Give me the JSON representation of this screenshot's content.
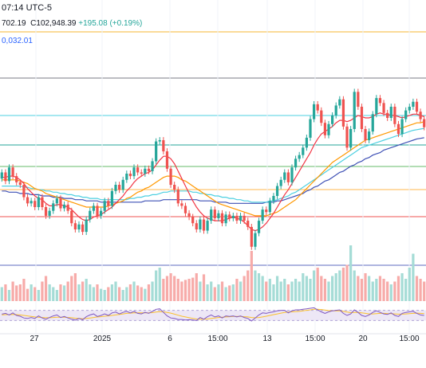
{
  "header": {
    "time_text": "07:14 UTC-5",
    "ohlc_prefix": "702.19",
    "close_label": "C",
    "close_value": "102,948.39",
    "change_text": "+195.08 (+0.19%)",
    "ma_text": "0,032.01"
  },
  "colors": {
    "up": "#26a69a",
    "down": "#ef5350",
    "ma_fast": "#f23645",
    "ma_mid": "#ff9800",
    "ma_slow": "#4dd0e1",
    "ma_long": "#3f51b5",
    "rsi_line": "#7e57c2",
    "rsi_ma": "#fbc02d",
    "rsi_band": "#ede7f6",
    "orange_level": "#f5b731"
  },
  "chart_data": {
    "type": "candlestick",
    "x_tick_labels": [
      "27",
      "2025",
      "6",
      "15:00",
      "13",
      "15:00",
      "20",
      "15:00"
    ],
    "price_range": [
      92000,
      110000
    ],
    "candles": [
      {
        "o": 98800,
        "c": 99300
      },
      {
        "o": 99300,
        "c": 98600
      },
      {
        "o": 98600,
        "c": 99700
      },
      {
        "o": 99700,
        "c": 99000
      },
      {
        "o": 99000,
        "c": 98500
      },
      {
        "o": 98500,
        "c": 98300
      },
      {
        "o": 98300,
        "c": 97300
      },
      {
        "o": 97300,
        "c": 96800
      },
      {
        "o": 96800,
        "c": 97000
      },
      {
        "o": 97000,
        "c": 96500
      },
      {
        "o": 96500,
        "c": 97300
      },
      {
        "o": 97300,
        "c": 96500
      },
      {
        "o": 96500,
        "c": 95800
      },
      {
        "o": 95800,
        "c": 96200
      },
      {
        "o": 96200,
        "c": 96800
      },
      {
        "o": 96800,
        "c": 97200
      },
      {
        "o": 97200,
        "c": 96400
      },
      {
        "o": 96400,
        "c": 96700
      },
      {
        "o": 96700,
        "c": 96200
      },
      {
        "o": 96200,
        "c": 95200
      },
      {
        "o": 95200,
        "c": 94700
      },
      {
        "o": 94700,
        "c": 95100
      },
      {
        "o": 95100,
        "c": 94500
      },
      {
        "o": 94500,
        "c": 95500
      },
      {
        "o": 95500,
        "c": 96200
      },
      {
        "o": 96200,
        "c": 96600
      },
      {
        "o": 96600,
        "c": 95800
      },
      {
        "o": 95800,
        "c": 96200
      },
      {
        "o": 96200,
        "c": 97000
      },
      {
        "o": 97000,
        "c": 96600
      },
      {
        "o": 96600,
        "c": 97800
      },
      {
        "o": 97800,
        "c": 98300
      },
      {
        "o": 98300,
        "c": 97900
      },
      {
        "o": 97900,
        "c": 98700
      },
      {
        "o": 98700,
        "c": 99200
      },
      {
        "o": 99200,
        "c": 99000
      },
      {
        "o": 99000,
        "c": 99700
      },
      {
        "o": 99700,
        "c": 99300
      },
      {
        "o": 99300,
        "c": 99200
      },
      {
        "o": 99200,
        "c": 99600
      },
      {
        "o": 99600,
        "c": 99400
      },
      {
        "o": 99400,
        "c": 100200
      },
      {
        "o": 100200,
        "c": 101800
      },
      {
        "o": 101800,
        "c": 101900
      },
      {
        "o": 101900,
        "c": 101000
      },
      {
        "o": 101000,
        "c": 99600
      },
      {
        "o": 99600,
        "c": 98300
      },
      {
        "o": 98300,
        "c": 97900
      },
      {
        "o": 97900,
        "c": 96800
      },
      {
        "o": 96800,
        "c": 96600
      },
      {
        "o": 96600,
        "c": 96000
      },
      {
        "o": 96000,
        "c": 95700
      },
      {
        "o": 95700,
        "c": 95200
      },
      {
        "o": 95200,
        "c": 94700
      },
      {
        "o": 94700,
        "c": 95500
      },
      {
        "o": 95500,
        "c": 94600
      },
      {
        "o": 94600,
        "c": 95400
      },
      {
        "o": 95400,
        "c": 96300
      },
      {
        "o": 96300,
        "c": 95600
      },
      {
        "o": 95600,
        "c": 96000
      },
      {
        "o": 96000,
        "c": 95200
      },
      {
        "o": 95200,
        "c": 95900
      },
      {
        "o": 95900,
        "c": 95600
      },
      {
        "o": 95600,
        "c": 95800
      },
      {
        "o": 95800,
        "c": 95400
      },
      {
        "o": 95400,
        "c": 95800
      },
      {
        "o": 95800,
        "c": 95400
      },
      {
        "o": 95400,
        "c": 94900
      },
      {
        "o": 94900,
        "c": 93300
      },
      {
        "o": 93300,
        "c": 94400
      },
      {
        "o": 94400,
        "c": 95400
      },
      {
        "o": 95400,
        "c": 96300
      },
      {
        "o": 96300,
        "c": 96100
      },
      {
        "o": 96100,
        "c": 97000
      },
      {
        "o": 97000,
        "c": 97400
      },
      {
        "o": 97400,
        "c": 98200
      },
      {
        "o": 98200,
        "c": 98700
      },
      {
        "o": 98700,
        "c": 99300
      },
      {
        "o": 99300,
        "c": 98500
      },
      {
        "o": 98500,
        "c": 99700
      },
      {
        "o": 99700,
        "c": 100400
      },
      {
        "o": 100400,
        "c": 100700
      },
      {
        "o": 100700,
        "c": 101300
      },
      {
        "o": 101300,
        "c": 102100
      },
      {
        "o": 102100,
        "c": 103600
      },
      {
        "o": 103600,
        "c": 104800
      },
      {
        "o": 104800,
        "c": 104300
      },
      {
        "o": 104300,
        "c": 103300
      },
      {
        "o": 103300,
        "c": 102300
      },
      {
        "o": 102300,
        "c": 103200
      },
      {
        "o": 103200,
        "c": 103900
      },
      {
        "o": 103900,
        "c": 104700
      },
      {
        "o": 104700,
        "c": 105200
      },
      {
        "o": 105200,
        "c": 103000
      },
      {
        "o": 103000,
        "c": 101300
      },
      {
        "o": 101300,
        "c": 102800
      },
      {
        "o": 102800,
        "c": 105800
      },
      {
        "o": 105800,
        "c": 104600
      },
      {
        "o": 104600,
        "c": 102800
      },
      {
        "o": 102800,
        "c": 101900
      },
      {
        "o": 101900,
        "c": 102600
      },
      {
        "o": 102600,
        "c": 104000
      },
      {
        "o": 104000,
        "c": 105300
      },
      {
        "o": 105300,
        "c": 104900
      },
      {
        "o": 104900,
        "c": 104100
      },
      {
        "o": 104100,
        "c": 103700
      },
      {
        "o": 103700,
        "c": 104600
      },
      {
        "o": 104600,
        "c": 103200
      },
      {
        "o": 103200,
        "c": 102400
      },
      {
        "o": 102400,
        "c": 103600
      },
      {
        "o": 103600,
        "c": 104300
      },
      {
        "o": 104300,
        "c": 104600
      },
      {
        "o": 104600,
        "c": 105000
      },
      {
        "o": 105000,
        "c": 104200
      },
      {
        "o": 104200,
        "c": 103600
      },
      {
        "o": 103600,
        "c": 102948
      }
    ],
    "ma_fast": [
      98900,
      98900,
      99000,
      99000,
      98900,
      98700,
      98400,
      98000,
      97700,
      97400,
      97200,
      97100,
      96800,
      96600,
      96600,
      96700,
      96700,
      96600,
      96500,
      96300,
      96000,
      95700,
      95500,
      95400,
      95500,
      95700,
      95800,
      95900,
      96100,
      96300,
      96500,
      96800,
      97100,
      97400,
      97800,
      98100,
      98500,
      98800,
      99000,
      99200,
      99300,
      99500,
      99900,
      100300,
      100600,
      100600,
      100400,
      100000,
      99400,
      98800,
      98200,
      97600,
      97000,
      96500,
      96100,
      95800,
      95600,
      95500,
      95400,
      95400,
      95400,
      95500,
      95600,
      95700,
      95600,
      95500,
      95300,
      95000,
      94700,
      94600,
      94700,
      94900,
      95200,
      95600,
      96000,
      96500,
      97000,
      97500,
      97900,
      98400,
      98900,
      99400,
      99900,
      100400,
      100900,
      101500,
      102000,
      102400,
      102600,
      102800,
      103000,
      103300,
      103500,
      103500,
      103400,
      103500,
      103700,
      103900,
      103800,
      103700,
      103700,
      103800,
      104000,
      104100,
      104000,
      104000,
      103900,
      103900,
      103800,
      103700,
      103800,
      103900,
      104000,
      104000,
      103900,
      103800
    ],
    "ma_mid": [
      98700,
      98700,
      98700,
      98700,
      98700,
      98600,
      98500,
      98400,
      98200,
      98000,
      97900,
      97800,
      97600,
      97500,
      97400,
      97300,
      97200,
      97100,
      97000,
      96900,
      96800,
      96700,
      96600,
      96500,
      96500,
      96500,
      96500,
      96500,
      96500,
      96600,
      96700,
      96800,
      96900,
      97000,
      97200,
      97300,
      97500,
      97700,
      97800,
      98000,
      98100,
      98300,
      98500,
      98700,
      98900,
      99000,
      99000,
      99000,
      98900,
      98700,
      98600,
      98400,
      98200,
      98000,
      97800,
      97600,
      97400,
      97200,
      97000,
      96800,
      96700,
      96600,
      96500,
      96400,
      96300,
      96200,
      96100,
      96000,
      95900,
      95800,
      95800,
      95800,
      95800,
      95900,
      96000,
      96100,
      96300,
      96500,
      96700,
      96900,
      97100,
      97400,
      97700,
      98000,
      98300,
      98600,
      98900,
      99200,
      99500,
      99800,
      100100,
      100300,
      100500,
      100700,
      100900,
      101100,
      101300,
      101500,
      101700,
      101900,
      102000,
      102100,
      102200,
      102300,
      102400,
      102500,
      102600,
      102700,
      102800,
      102900,
      103000,
      103100,
      103200,
      103300,
      103300,
      103400
    ],
    "ma_slow": [
      98200,
      98200,
      98200,
      98200,
      98200,
      98200,
      98100,
      98100,
      98000,
      98000,
      97900,
      97900,
      97800,
      97800,
      97700,
      97700,
      97600,
      97600,
      97500,
      97500,
      97400,
      97400,
      97300,
      97300,
      97200,
      97200,
      97200,
      97100,
      97100,
      97100,
      97100,
      97100,
      97100,
      97100,
      97100,
      97200,
      97200,
      97300,
      97300,
      97400,
      97400,
      97500,
      97500,
      97600,
      97700,
      97700,
      97800,
      97800,
      97800,
      97800,
      97800,
      97800,
      97700,
      97700,
      97600,
      97600,
      97500,
      97500,
      97400,
      97400,
      97300,
      97300,
      97200,
      97200,
      97100,
      97100,
      97000,
      97000,
      96900,
      96900,
      96900,
      96900,
      96900,
      97000,
      97000,
      97100,
      97200,
      97300,
      97400,
      97600,
      97700,
      97900,
      98100,
      98300,
      98500,
      98700,
      98900,
      99100,
      99300,
      99500,
      99700,
      99900,
      100100,
      100300,
      100500,
      100700,
      100900,
      101100,
      101300,
      101400,
      101500,
      101600,
      101700,
      101800,
      101900,
      102000,
      102100,
      102200,
      102300,
      102400,
      102500,
      102600,
      102700,
      102750,
      102800,
      102850
    ],
    "ma_long": [
      97800,
      97800,
      97700,
      97700,
      97700,
      97600,
      97600,
      97600,
      97500,
      97500,
      97500,
      97400,
      97400,
      97400,
      97300,
      97300,
      97300,
      97200,
      97200,
      97200,
      97100,
      97100,
      97100,
      97000,
      97000,
      97000,
      97000,
      96900,
      96900,
      96900,
      96900,
      96900,
      96900,
      96900,
      96900,
      96900,
      96900,
      96900,
      96900,
      97000,
      97000,
      97000,
      97000,
      97000,
      97100,
      97100,
      97100,
      97100,
      97100,
      97100,
      97100,
      97100,
      97100,
      97100,
      97000,
      97000,
      97000,
      97000,
      96900,
      96900,
      96900,
      96900,
      96800,
      96800,
      96800,
      96800,
      96800,
      96800,
      96800,
      96800,
      96800,
      96800,
      96900,
      96900,
      96900,
      97000,
      97000,
      97100,
      97200,
      97300,
      97400,
      97500,
      97600,
      97800,
      97900,
      98100,
      98200,
      98400,
      98600,
      98700,
      98900,
      99100,
      99300,
      99400,
      99600,
      99800,
      99900,
      100100,
      100200,
      100400,
      100500,
      100700,
      100800,
      100900,
      101100,
      101200,
      101300,
      101400,
      101500,
      101600,
      101700,
      101800,
      101900,
      102000,
      102050,
      102100
    ],
    "volumes": [
      0.25,
      0.3,
      0.2,
      0.35,
      0.28,
      0.3,
      0.4,
      0.22,
      0.3,
      0.25,
      0.2,
      0.35,
      0.45,
      0.3,
      0.25,
      0.2,
      0.3,
      0.28,
      0.35,
      0.45,
      0.5,
      0.3,
      0.35,
      0.4,
      0.3,
      0.25,
      0.3,
      0.22,
      0.2,
      0.25,
      0.3,
      0.35,
      0.25,
      0.2,
      0.25,
      0.3,
      0.35,
      0.28,
      0.25,
      0.22,
      0.3,
      0.35,
      0.55,
      0.6,
      0.4,
      0.45,
      0.5,
      0.45,
      0.4,
      0.35,
      0.38,
      0.4,
      0.42,
      0.5,
      0.35,
      0.48,
      0.3,
      0.35,
      0.25,
      0.3,
      0.35,
      0.25,
      0.28,
      0.3,
      0.4,
      0.35,
      0.45,
      0.55,
      0.9,
      0.55,
      0.5,
      0.45,
      0.35,
      0.4,
      0.3,
      0.45,
      0.35,
      0.4,
      0.3,
      0.35,
      0.4,
      0.35,
      0.5,
      0.45,
      0.4,
      0.55,
      0.6,
      0.45,
      0.4,
      0.35,
      0.45,
      0.5,
      0.55,
      0.6,
      0.65,
      1.0,
      0.55,
      0.45,
      0.4,
      0.5,
      0.45,
      0.35,
      0.4,
      0.45,
      0.4,
      0.35,
      0.3,
      0.35,
      0.45,
      0.5,
      0.4,
      0.6,
      0.85,
      0.45,
      0.4,
      0.35
    ],
    "rsi": [
      55,
      58,
      52,
      60,
      50,
      47,
      40,
      38,
      42,
      38,
      48,
      40,
      35,
      42,
      48,
      52,
      42,
      46,
      40,
      35,
      32,
      38,
      33,
      45,
      52,
      56,
      46,
      50,
      56,
      50,
      60,
      63,
      56,
      62,
      66,
      60,
      66,
      58,
      56,
      62,
      58,
      66,
      74,
      76,
      62,
      48,
      40,
      38,
      34,
      34,
      32,
      33,
      32,
      30,
      42,
      35,
      45,
      52,
      44,
      48,
      40,
      48,
      46,
      48,
      44,
      48,
      42,
      38,
      28,
      40,
      52,
      60,
      58,
      62,
      64,
      68,
      70,
      70,
      60,
      68,
      72,
      72,
      74,
      76,
      78,
      80,
      72,
      64,
      58,
      64,
      68,
      70,
      72,
      58,
      50,
      56,
      72,
      62,
      50,
      46,
      52,
      62,
      68,
      62,
      56,
      54,
      60,
      50,
      46,
      58,
      62,
      64,
      66,
      58,
      52,
      50
    ],
    "rsi_ma": [
      52,
      53,
      53,
      54,
      53,
      52,
      50,
      48,
      46,
      44,
      43,
      42,
      41,
      41,
      42,
      43,
      43,
      43,
      42,
      41,
      39,
      38,
      37,
      38,
      40,
      42,
      44,
      45,
      47,
      48,
      50,
      52,
      54,
      56,
      58,
      59,
      60,
      60,
      60,
      60,
      60,
      61,
      63,
      65,
      64,
      62,
      59,
      55,
      51,
      47,
      44,
      41,
      38,
      36,
      35,
      35,
      36,
      38,
      40,
      42,
      43,
      44,
      45,
      46,
      46,
      46,
      45,
      44,
      42,
      41,
      42,
      44,
      47,
      50,
      53,
      56,
      59,
      62,
      63,
      64,
      65,
      66,
      68,
      70,
      72,
      74,
      74,
      73,
      71,
      69,
      68,
      68,
      68,
      66,
      63,
      61,
      62,
      62,
      60,
      58,
      56,
      56,
      57,
      58,
      58,
      57,
      57,
      56,
      55,
      55,
      56,
      57,
      58,
      59,
      58,
      57
    ]
  }
}
